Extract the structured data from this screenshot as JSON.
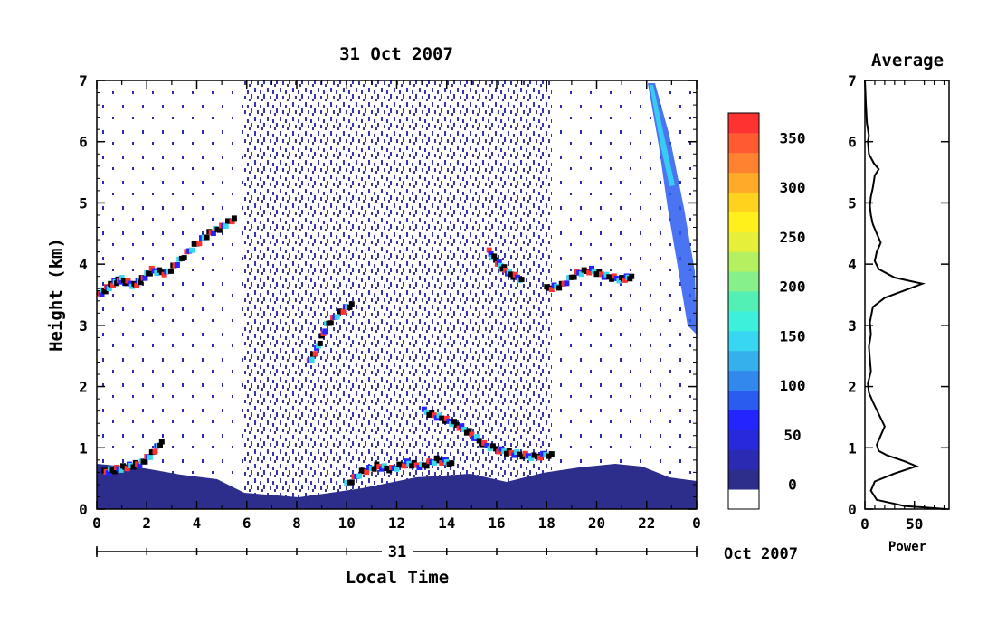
{
  "chart_data": [
    {
      "type": "heatmap",
      "title": "31 Oct 2007",
      "xlabel": "Local Time",
      "ylabel": "Height (km)",
      "x_ticks": [
        "0",
        "2",
        "4",
        "6",
        "8",
        "10",
        "12",
        "14",
        "16",
        "18",
        "20",
        "22",
        "0"
      ],
      "x_tick_values": [
        0,
        2,
        4,
        6,
        8,
        10,
        12,
        14,
        16,
        18,
        20,
        22,
        24
      ],
      "y_ticks": [
        "0",
        "1",
        "2",
        "3",
        "4",
        "5",
        "6",
        "7"
      ],
      "xlim": [
        0,
        24
      ],
      "ylim": [
        0,
        7
      ],
      "date_axis": {
        "day_label": "31",
        "month_label": "Oct 2007"
      },
      "colorbar": {
        "ticks": [
          "0",
          "50",
          "100",
          "150",
          "200",
          "250",
          "300",
          "350"
        ],
        "range": [
          -25,
          375
        ],
        "colors": [
          "#ffffff",
          "#2d2d8c",
          "#2a2ab2",
          "#2828dc",
          "#2424ff",
          "#2a5cf0",
          "#3388ee",
          "#35b0ec",
          "#38d6f0",
          "#3cf0dc",
          "#52f0b4",
          "#86f08a",
          "#b4f060",
          "#e6f03a",
          "#fff01c",
          "#ffd21e",
          "#ffaa28",
          "#ff8230",
          "#ff5a32",
          "#ff3232"
        ]
      },
      "features": [
        {
          "name": "cloud layer",
          "points": [
            [
              0.1,
              3.5
            ],
            [
              0.4,
              3.6
            ],
            [
              0.7,
              3.7
            ],
            [
              1.0,
              3.75
            ],
            [
              1.5,
              3.65
            ],
            [
              1.8,
              3.75
            ],
            [
              2.2,
              3.9
            ],
            [
              2.8,
              3.85
            ],
            [
              3.3,
              4.05
            ],
            [
              3.9,
              4.3
            ],
            [
              4.5,
              4.5
            ],
            [
              5.0,
              4.6
            ],
            [
              5.5,
              4.75
            ]
          ]
        },
        {
          "name": "cloud layer",
          "points": [
            [
              8.5,
              2.4
            ],
            [
              8.8,
              2.6
            ],
            [
              9.2,
              3.0
            ],
            [
              9.7,
              3.2
            ],
            [
              10.2,
              3.35
            ]
          ]
        },
        {
          "name": "cloud layer",
          "points": [
            [
              13.1,
              1.6
            ],
            [
              13.7,
              1.5
            ],
            [
              14.3,
              1.4
            ],
            [
              14.9,
              1.25
            ],
            [
              15.5,
              1.05
            ],
            [
              16.2,
              0.95
            ],
            [
              16.8,
              0.9
            ],
            [
              17.5,
              0.85
            ],
            [
              18.2,
              0.9
            ]
          ]
        },
        {
          "name": "cloud layer",
          "points": [
            [
              10.0,
              0.4
            ],
            [
              10.6,
              0.6
            ],
            [
              11.2,
              0.7
            ],
            [
              11.8,
              0.65
            ],
            [
              12.4,
              0.75
            ],
            [
              13.0,
              0.7
            ],
            [
              13.6,
              0.8
            ],
            [
              14.2,
              0.75
            ]
          ]
        },
        {
          "name": "cloud layer",
          "points": [
            [
              18.0,
              3.6
            ],
            [
              18.6,
              3.65
            ],
            [
              19.2,
              3.85
            ],
            [
              19.8,
              3.9
            ],
            [
              20.4,
              3.8
            ],
            [
              21.0,
              3.75
            ],
            [
              21.4,
              3.8
            ]
          ]
        },
        {
          "name": "cloud layer",
          "points": [
            [
              0.3,
              0.6
            ],
            [
              0.8,
              0.65
            ],
            [
              1.3,
              0.7
            ],
            [
              1.8,
              0.75
            ],
            [
              2.2,
              0.9
            ],
            [
              2.6,
              1.1
            ]
          ]
        },
        {
          "name": "cloud layer",
          "points": [
            [
              15.7,
              4.2
            ],
            [
              16.1,
              4.0
            ],
            [
              16.5,
              3.85
            ],
            [
              17.0,
              3.75
            ]
          ]
        }
      ]
    },
    {
      "type": "line",
      "title": "Average",
      "xlabel": "Power",
      "ylabel": "",
      "x_ticks": [
        "0",
        "50"
      ],
      "y_ticks": [
        "0",
        "1",
        "2",
        "3",
        "4",
        "5",
        "6",
        "7"
      ],
      "xlim": [
        0,
        85
      ],
      "ylim": [
        0,
        7
      ],
      "series": [
        {
          "values": [
            [
              82,
              0.0
            ],
            [
              40,
              0.05
            ],
            [
              12,
              0.15
            ],
            [
              6,
              0.3
            ],
            [
              10,
              0.45
            ],
            [
              30,
              0.58
            ],
            [
              52,
              0.7
            ],
            [
              40,
              0.78
            ],
            [
              22,
              0.88
            ],
            [
              14,
              0.95
            ],
            [
              12,
              1.05
            ],
            [
              16,
              1.2
            ],
            [
              20,
              1.35
            ],
            [
              14,
              1.55
            ],
            [
              8,
              1.75
            ],
            [
              4,
              1.9
            ],
            [
              3,
              2.05
            ],
            [
              6,
              2.25
            ],
            [
              5,
              2.45
            ],
            [
              4,
              2.65
            ],
            [
              6,
              2.85
            ],
            [
              5,
              3.05
            ],
            [
              8,
              3.3
            ],
            [
              20,
              3.45
            ],
            [
              48,
              3.62
            ],
            [
              58,
              3.68
            ],
            [
              30,
              3.78
            ],
            [
              14,
              3.92
            ],
            [
              10,
              4.05
            ],
            [
              12,
              4.2
            ],
            [
              16,
              4.35
            ],
            [
              12,
              4.5
            ],
            [
              8,
              4.65
            ],
            [
              6,
              4.8
            ],
            [
              5,
              4.95
            ],
            [
              6,
              5.1
            ],
            [
              8,
              5.25
            ],
            [
              10,
              5.45
            ],
            [
              14,
              5.55
            ],
            [
              9,
              5.65
            ],
            [
              4,
              5.8
            ],
            [
              3,
              6.0
            ],
            [
              4,
              6.1
            ],
            [
              2,
              6.3
            ],
            [
              1,
              6.6
            ],
            [
              0,
              7.0
            ]
          ]
        }
      ]
    }
  ]
}
